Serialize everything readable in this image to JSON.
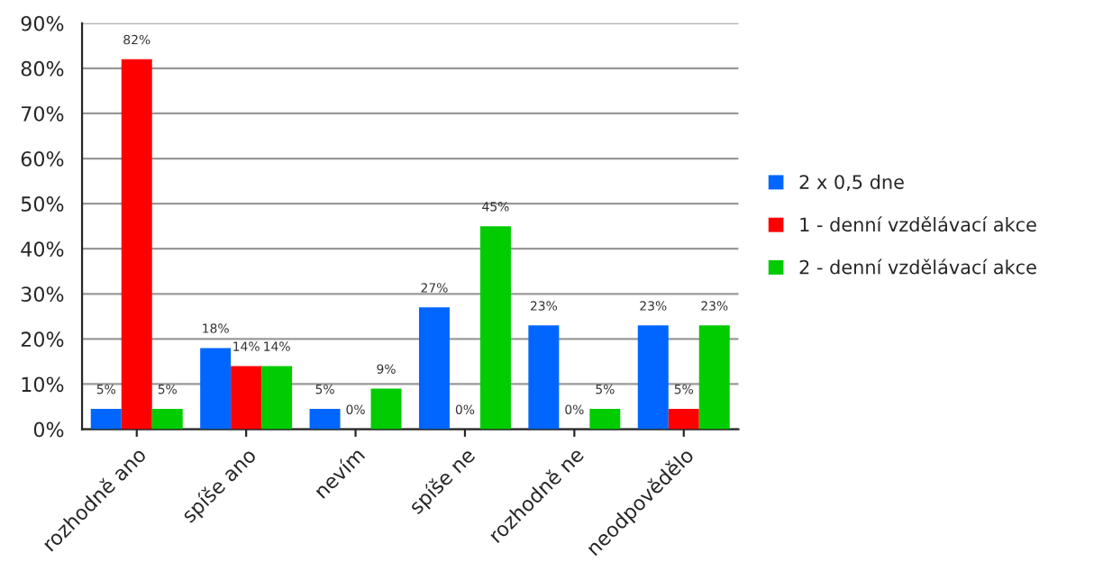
{
  "chart_data": {
    "type": "bar",
    "categories": [
      "rozhodně ano",
      "spíše ano",
      "nevím",
      "spíše ne",
      "rozhodně ne",
      "neodpovědělo"
    ],
    "series": [
      {
        "name": "2 x 0,5 dne",
        "color": "#0066ff",
        "values": [
          4.5,
          18,
          4.5,
          27,
          23,
          23
        ],
        "value_labels": [
          "5%",
          "18%",
          "5%",
          "27%",
          "23%",
          "23%"
        ]
      },
      {
        "name": "1 - denní vzdělávací akce",
        "color": "#ff0000",
        "values": [
          82,
          14,
          0,
          0,
          0,
          4.5
        ],
        "value_labels": [
          "82%",
          "14%",
          "0%",
          "0%",
          "0%",
          "5%"
        ]
      },
      {
        "name": "2 - denní vzdělávací akce",
        "color": "#00cc00",
        "values": [
          4.5,
          14,
          9,
          45,
          4.5,
          23
        ],
        "value_labels": [
          "5%",
          "14%",
          "9%",
          "45%",
          "5%",
          "23%"
        ]
      }
    ],
    "ylim": [
      0,
      90
    ],
    "yticks": [
      {
        "value": 0,
        "label": "0%"
      },
      {
        "value": 10,
        "label": "10%"
      },
      {
        "value": 20,
        "label": "20%"
      },
      {
        "value": 30,
        "label": "30%"
      },
      {
        "value": 40,
        "label": "40%"
      },
      {
        "value": 50,
        "label": "50%"
      },
      {
        "value": 60,
        "label": "60%"
      },
      {
        "value": 70,
        "label": "70%"
      },
      {
        "value": 80,
        "label": "80%"
      },
      {
        "value": 90,
        "label": "90%"
      }
    ],
    "grid": "y",
    "legend": "right"
  }
}
